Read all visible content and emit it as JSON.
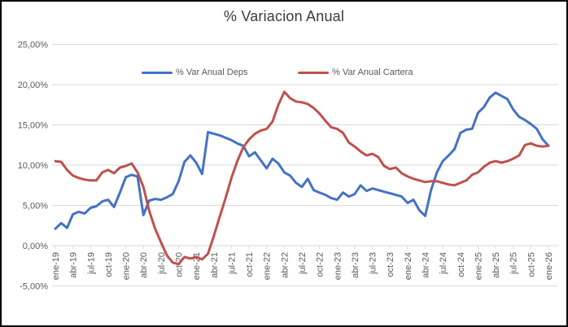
{
  "window": {
    "border_color": "#000000",
    "background": "#ffffff"
  },
  "chart_data": {
    "type": "line",
    "title": "% Variacion Anual",
    "grid": true,
    "legend_position": "top-inside",
    "ylim": [
      -5,
      25
    ],
    "y_ticks": [
      {
        "v": 25,
        "label": "25,00%"
      },
      {
        "v": 20,
        "label": "20,00%"
      },
      {
        "v": 15,
        "label": "15,00%"
      },
      {
        "v": 10,
        "label": "10,00%"
      },
      {
        "v": 5,
        "label": "5,00%"
      },
      {
        "v": 0,
        "label": "0,00%"
      },
      {
        "v": -5,
        "label": "-5,00%"
      }
    ],
    "x_tick_every": 3,
    "x_tick_labels": [
      "ene-19",
      "abr-19",
      "jul-19",
      "oct-19",
      "ene-20",
      "abr-20",
      "jul-20",
      "oct-20",
      "ene-21",
      "abr-21",
      "jul-21",
      "oct-21",
      "ene-22",
      "abr-22",
      "jul-22",
      "oct-22",
      "ene-23",
      "abr-23",
      "jul-23",
      "oct-23",
      "ene-24",
      "abr-24",
      "jul-24",
      "oct-24",
      "ene-25",
      "abr-25",
      "jul-25",
      "oct-25",
      "ene-26"
    ],
    "months": [
      "ene-19",
      "feb-19",
      "mar-19",
      "abr-19",
      "may-19",
      "jun-19",
      "jul-19",
      "ago-19",
      "sep-19",
      "oct-19",
      "nov-19",
      "dic-19",
      "ene-20",
      "feb-20",
      "mar-20",
      "abr-20",
      "may-20",
      "jun-20",
      "jul-20",
      "ago-20",
      "sep-20",
      "oct-20",
      "nov-20",
      "dic-20",
      "ene-21",
      "feb-21",
      "mar-21",
      "abr-21",
      "may-21",
      "jun-21",
      "jul-21",
      "ago-21",
      "sep-21",
      "oct-21",
      "nov-21",
      "dic-21",
      "ene-22",
      "feb-22",
      "mar-22",
      "abr-22",
      "may-22",
      "jun-22",
      "jul-22",
      "ago-22",
      "sep-22",
      "oct-22",
      "nov-22",
      "dic-22",
      "ene-23",
      "feb-23",
      "mar-23",
      "abr-23",
      "may-23",
      "jun-23",
      "jul-23",
      "ago-23",
      "sep-23",
      "oct-23",
      "nov-23",
      "dic-23",
      "ene-24",
      "feb-24",
      "mar-24",
      "abr-24",
      "may-24",
      "jun-24",
      "jul-24",
      "ago-24",
      "sep-24",
      "oct-24",
      "nov-24",
      "dic-24",
      "ene-25",
      "feb-25",
      "mar-25",
      "abr-25",
      "may-25",
      "jun-25",
      "jul-25",
      "ago-25",
      "sep-25",
      "oct-25",
      "nov-25",
      "dic-25",
      "ene-26"
    ],
    "series": [
      {
        "name": "% Var Anual Deps",
        "color": "#4472C4",
        "values": [
          2.1,
          2.8,
          2.2,
          3.9,
          4.2,
          4.0,
          4.7,
          4.9,
          5.5,
          5.7,
          4.8,
          6.6,
          8.5,
          8.8,
          8.6,
          3.8,
          5.6,
          5.8,
          5.7,
          6.0,
          6.4,
          8.0,
          10.4,
          11.2,
          10.3,
          8.9,
          14.1,
          13.9,
          13.7,
          13.4,
          13.1,
          12.7,
          12.4,
          11.1,
          11.6,
          10.6,
          9.6,
          10.8,
          10.2,
          9.1,
          8.7,
          7.8,
          7.3,
          8.3,
          6.9,
          6.6,
          6.3,
          5.9,
          5.7,
          6.6,
          6.1,
          6.4,
          7.5,
          6.8,
          7.1,
          6.9,
          6.7,
          6.5,
          6.3,
          6.1,
          5.3,
          5.7,
          4.4,
          3.7,
          6.9,
          9.1,
          10.5,
          11.2,
          12.0,
          14.0,
          14.4,
          14.5,
          16.5,
          17.2,
          18.4,
          19.0,
          18.6,
          18.2,
          16.9,
          16.0,
          15.6,
          15.1,
          14.5,
          13.2,
          12.4
        ]
      },
      {
        "name": "% Var Anual Cartera",
        "color": "#C0504D",
        "values": [
          10.5,
          10.4,
          9.4,
          8.7,
          8.4,
          8.2,
          8.1,
          8.1,
          9.1,
          9.4,
          9.0,
          9.7,
          9.9,
          10.2,
          9.1,
          7.3,
          4.3,
          2.1,
          0.4,
          -1.2,
          -2.1,
          -2.3,
          -1.4,
          -1.6,
          -1.4,
          -1.7,
          -1.0,
          1.2,
          3.6,
          5.9,
          8.4,
          10.5,
          12.2,
          13.2,
          13.9,
          14.3,
          14.5,
          15.4,
          17.5,
          19.1,
          18.3,
          17.9,
          17.8,
          17.6,
          17.1,
          16.4,
          15.5,
          14.7,
          14.5,
          14.0,
          12.8,
          12.3,
          11.7,
          11.2,
          11.4,
          11.0,
          9.9,
          9.5,
          9.7,
          9.0,
          8.6,
          8.3,
          8.1,
          7.9,
          8.0,
          8.0,
          7.8,
          7.6,
          7.5,
          7.8,
          8.1,
          8.8,
          9.1,
          9.8,
          10.3,
          10.5,
          10.3,
          10.5,
          10.8,
          11.2,
          12.5,
          12.7,
          12.4,
          12.3,
          12.4
        ]
      }
    ],
    "gridline_color": "#D9D9D9",
    "tick_label_color": "#595959",
    "title_color": "#3b3b3b"
  }
}
